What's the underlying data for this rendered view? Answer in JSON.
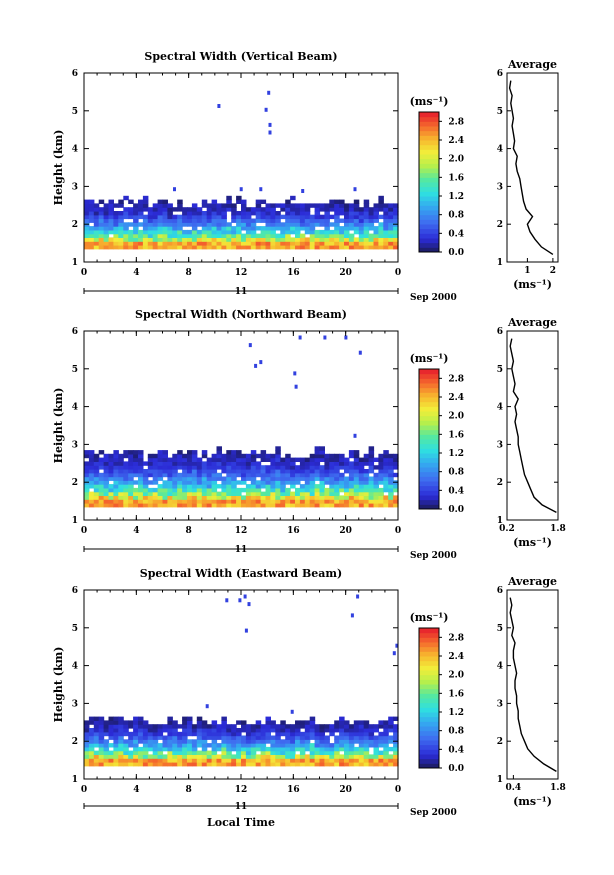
{
  "chart_data": [
    {
      "type": "heatmap",
      "title": "Spectral Width (Vertical Beam)",
      "xlabel": "",
      "ylabel": "Height (km)",
      "xlim": [
        0,
        24
      ],
      "ylim": [
        1,
        6
      ],
      "xticks": [
        "0",
        "4",
        "8",
        "12",
        "16",
        "20",
        "0"
      ],
      "yticks": [
        "1",
        "2",
        "3",
        "4",
        "5",
        "6"
      ],
      "date_day": "11",
      "date_month_year": "Sep 2000",
      "colorbar": {
        "unit": "(ms⁻¹)",
        "range": [
          0,
          3.0
        ],
        "labels": [
          "0.0",
          "0.4",
          "0.8",
          "1.2",
          "1.6",
          "2.0",
          "2.4",
          "2.8"
        ]
      },
      "layer": {
        "base_km": 1.35,
        "top_km": 2.55
      },
      "sporadic": [
        {
          "t": 10.2,
          "h": 5.1
        },
        {
          "t": 14.0,
          "h": 5.45
        },
        {
          "t": 14.1,
          "h": 4.6
        },
        {
          "t": 14.1,
          "h": 4.4
        },
        {
          "t": 13.8,
          "h": 5.0
        },
        {
          "t": 6.8,
          "h": 2.9
        },
        {
          "t": 11.9,
          "h": 2.9
        },
        {
          "t": 13.4,
          "h": 2.9
        },
        {
          "t": 16.6,
          "h": 2.85
        },
        {
          "t": 20.6,
          "h": 2.9
        }
      ],
      "average_profile": {
        "title": "Average",
        "xlabel": "(ms⁻¹)",
        "xticks": [
          "1",
          "2"
        ],
        "xlim": [
          0.2,
          2.2
        ],
        "heights": [
          1.2,
          1.4,
          1.6,
          1.8,
          2.0,
          2.2,
          2.4,
          2.6,
          2.8,
          3.0,
          3.2,
          3.4,
          3.6,
          3.8,
          4.0,
          4.2,
          4.4,
          4.6,
          4.8,
          5.0,
          5.2,
          5.4,
          5.6,
          5.8
        ],
        "values": [
          2.0,
          1.55,
          1.3,
          1.1,
          1.0,
          1.2,
          0.95,
          0.85,
          0.8,
          0.75,
          0.7,
          0.6,
          0.55,
          0.6,
          0.45,
          0.5,
          0.45,
          0.4,
          0.45,
          0.4,
          0.35,
          0.4,
          0.3,
          0.35
        ]
      }
    },
    {
      "type": "heatmap",
      "title": "Spectral Width (Northward Beam)",
      "xlabel": "",
      "ylabel": "Height (km)",
      "xlim": [
        0,
        24
      ],
      "ylim": [
        1,
        6
      ],
      "xticks": [
        "0",
        "4",
        "8",
        "12",
        "16",
        "20",
        "0"
      ],
      "yticks": [
        "1",
        "2",
        "3",
        "4",
        "5",
        "6"
      ],
      "date_day": "11",
      "date_month_year": "Sep 2000",
      "colorbar": {
        "unit": "(ms⁻¹)",
        "range": [
          0,
          3.0
        ],
        "labels": [
          "0.0",
          "0.4",
          "0.8",
          "1.2",
          "1.6",
          "2.0",
          "2.4",
          "2.8"
        ]
      },
      "layer": {
        "base_km": 1.35,
        "top_km": 2.75
      },
      "sporadic": [
        {
          "t": 12.6,
          "h": 5.6
        },
        {
          "t": 13.0,
          "h": 5.05
        },
        {
          "t": 13.4,
          "h": 5.15
        },
        {
          "t": 16.0,
          "h": 4.85
        },
        {
          "t": 16.1,
          "h": 4.5
        },
        {
          "t": 16.4,
          "h": 5.8
        },
        {
          "t": 18.3,
          "h": 5.8
        },
        {
          "t": 21.0,
          "h": 5.4
        },
        {
          "t": 19.9,
          "h": 5.8
        },
        {
          "t": 20.6,
          "h": 3.2
        }
      ],
      "average_profile": {
        "title": "Average",
        "xlabel": "(ms⁻¹)",
        "xticks": [
          "0.2",
          "1.8"
        ],
        "xlim": [
          0.2,
          1.8
        ],
        "heights": [
          1.2,
          1.4,
          1.6,
          1.8,
          2.0,
          2.2,
          2.4,
          2.6,
          2.8,
          3.0,
          3.2,
          3.4,
          3.6,
          3.8,
          4.0,
          4.2,
          4.4,
          4.6,
          4.8,
          5.0,
          5.2,
          5.4,
          5.6,
          5.8
        ],
        "values": [
          1.75,
          1.3,
          1.05,
          0.95,
          0.85,
          0.75,
          0.7,
          0.65,
          0.6,
          0.55,
          0.55,
          0.5,
          0.45,
          0.5,
          0.45,
          0.55,
          0.4,
          0.45,
          0.4,
          0.35,
          0.4,
          0.35,
          0.3,
          0.35
        ]
      }
    },
    {
      "type": "heatmap",
      "title": "Spectral Width (Eastward Beam)",
      "xlabel": "Local Time",
      "ylabel": "Height (km)",
      "xlim": [
        0,
        24
      ],
      "ylim": [
        1,
        6
      ],
      "xticks": [
        "0",
        "4",
        "8",
        "12",
        "16",
        "20",
        "0"
      ],
      "yticks": [
        "1",
        "2",
        "3",
        "4",
        "5",
        "6"
      ],
      "date_day": "11",
      "date_month_year": "Sep 2000",
      "colorbar": {
        "unit": "(ms⁻¹)",
        "range": [
          0,
          3.0
        ],
        "labels": [
          "0.0",
          "0.4",
          "0.8",
          "1.2",
          "1.6",
          "2.0",
          "2.4",
          "2.8"
        ]
      },
      "layer": {
        "base_km": 1.35,
        "top_km": 2.5
      },
      "sporadic": [
        {
          "t": 11.8,
          "h": 5.7
        },
        {
          "t": 12.2,
          "h": 5.8
        },
        {
          "t": 12.5,
          "h": 5.6
        },
        {
          "t": 10.8,
          "h": 5.7
        },
        {
          "t": 12.3,
          "h": 4.9
        },
        {
          "t": 20.4,
          "h": 5.3
        },
        {
          "t": 20.8,
          "h": 5.8
        },
        {
          "t": 23.6,
          "h": 4.3
        },
        {
          "t": 23.8,
          "h": 4.5
        },
        {
          "t": 9.3,
          "h": 2.9
        },
        {
          "t": 15.8,
          "h": 2.75
        }
      ],
      "average_profile": {
        "title": "Average",
        "xlabel": "(ms⁻¹)",
        "xticks": [
          "0.4",
          "1.8"
        ],
        "xlim": [
          0.2,
          1.8
        ],
        "heights": [
          1.2,
          1.4,
          1.6,
          1.8,
          2.0,
          2.2,
          2.4,
          2.6,
          2.8,
          3.0,
          3.2,
          3.4,
          3.6,
          3.8,
          4.0,
          4.2,
          4.4,
          4.6,
          4.8,
          5.0,
          5.2,
          5.4,
          5.6,
          5.8
        ],
        "values": [
          1.75,
          1.35,
          1.05,
          0.85,
          0.75,
          0.65,
          0.6,
          0.55,
          0.55,
          0.5,
          0.5,
          0.45,
          0.45,
          0.5,
          0.45,
          0.4,
          0.4,
          0.45,
          0.35,
          0.4,
          0.35,
          0.3,
          0.35,
          0.3
        ]
      }
    }
  ]
}
